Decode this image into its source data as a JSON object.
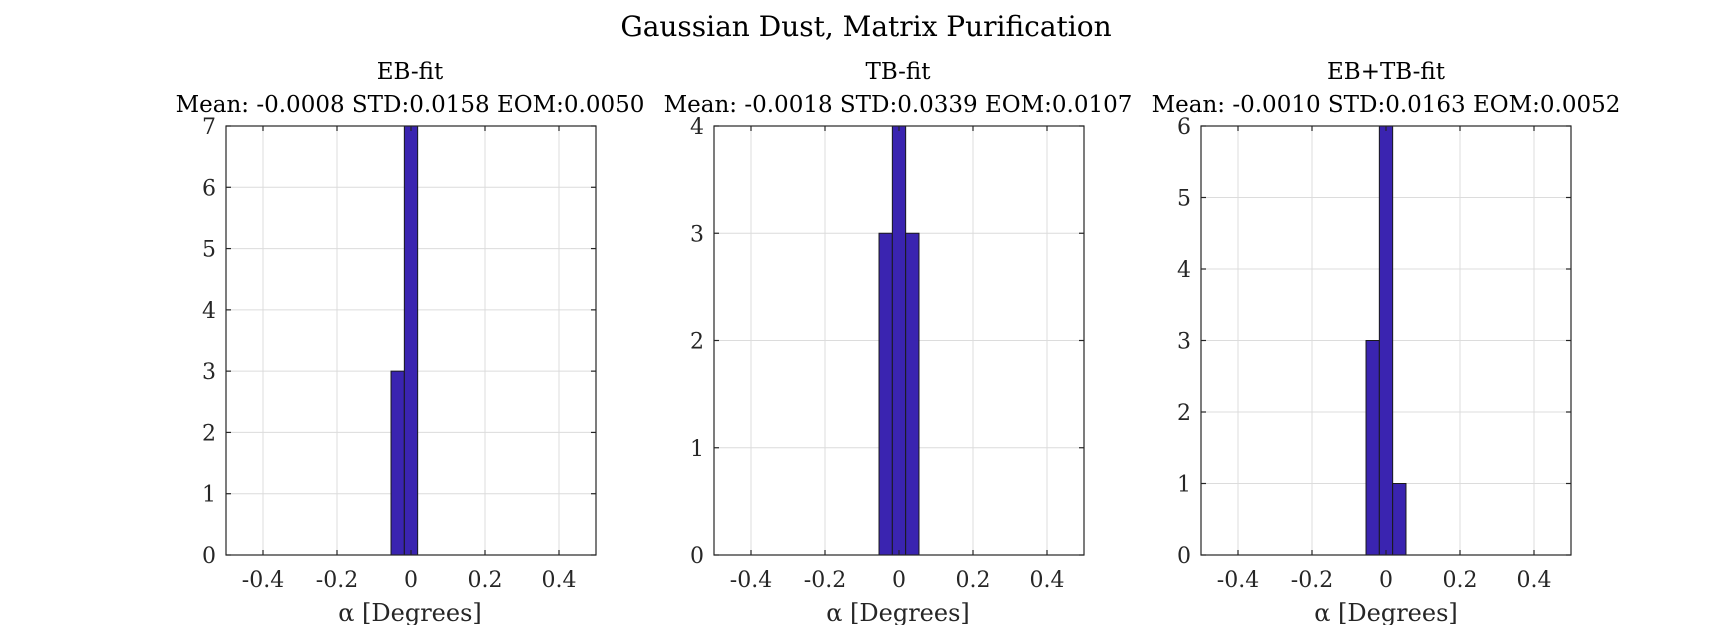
{
  "figure_title": "Gaussian Dust, Matrix Purification",
  "bar_color": "#3A24B0",
  "chart_data": [
    {
      "type": "bar",
      "title": "EB-fit",
      "subtitle": "Mean: -0.0008 STD:0.0158 EOM:0.0050",
      "xlabel": "α [Degrees]",
      "ylabel": "",
      "xlim": [
        -0.5,
        0.5
      ],
      "ylim": [
        0,
        7
      ],
      "xticks": [
        -0.4,
        -0.2,
        0,
        0.2,
        0.4
      ],
      "xtick_labels": [
        "-0.4",
        "-0.2",
        "0",
        "0.2",
        "0.4"
      ],
      "yticks": [
        0,
        1,
        2,
        3,
        4,
        5,
        6,
        7
      ],
      "ytick_labels": [
        "0",
        "1",
        "2",
        "3",
        "4",
        "5",
        "6",
        "7"
      ],
      "grid": true,
      "bin_edges": [
        -0.054,
        -0.018,
        0.018,
        0.054
      ],
      "counts": [
        3,
        7,
        0
      ]
    },
    {
      "type": "bar",
      "title": "TB-fit",
      "subtitle": "Mean: -0.0018 STD:0.0339 EOM:0.0107",
      "xlabel": "α [Degrees]",
      "ylabel": "",
      "xlim": [
        -0.5,
        0.5
      ],
      "ylim": [
        0,
        4
      ],
      "xticks": [
        -0.4,
        -0.2,
        0,
        0.2,
        0.4
      ],
      "xtick_labels": [
        "-0.4",
        "-0.2",
        "0",
        "0.2",
        "0.4"
      ],
      "yticks": [
        0,
        1,
        2,
        3,
        4
      ],
      "ytick_labels": [
        "0",
        "1",
        "2",
        "3",
        "4"
      ],
      "grid": true,
      "bin_edges": [
        -0.054,
        -0.018,
        0.018,
        0.054
      ],
      "counts": [
        3,
        4,
        3
      ]
    },
    {
      "type": "bar",
      "title": "EB+TB-fit",
      "subtitle": "Mean: -0.0010 STD:0.0163 EOM:0.0052",
      "xlabel": "α [Degrees]",
      "ylabel": "",
      "xlim": [
        -0.5,
        0.5
      ],
      "ylim": [
        0,
        6
      ],
      "xticks": [
        -0.4,
        -0.2,
        0,
        0.2,
        0.4
      ],
      "xtick_labels": [
        "-0.4",
        "-0.2",
        "0",
        "0.2",
        "0.4"
      ],
      "yticks": [
        0,
        1,
        2,
        3,
        4,
        5,
        6
      ],
      "ytick_labels": [
        "0",
        "1",
        "2",
        "3",
        "4",
        "5",
        "6"
      ],
      "grid": true,
      "bin_edges": [
        -0.054,
        -0.018,
        0.018,
        0.054
      ],
      "counts": [
        3,
        6,
        1
      ]
    }
  ]
}
